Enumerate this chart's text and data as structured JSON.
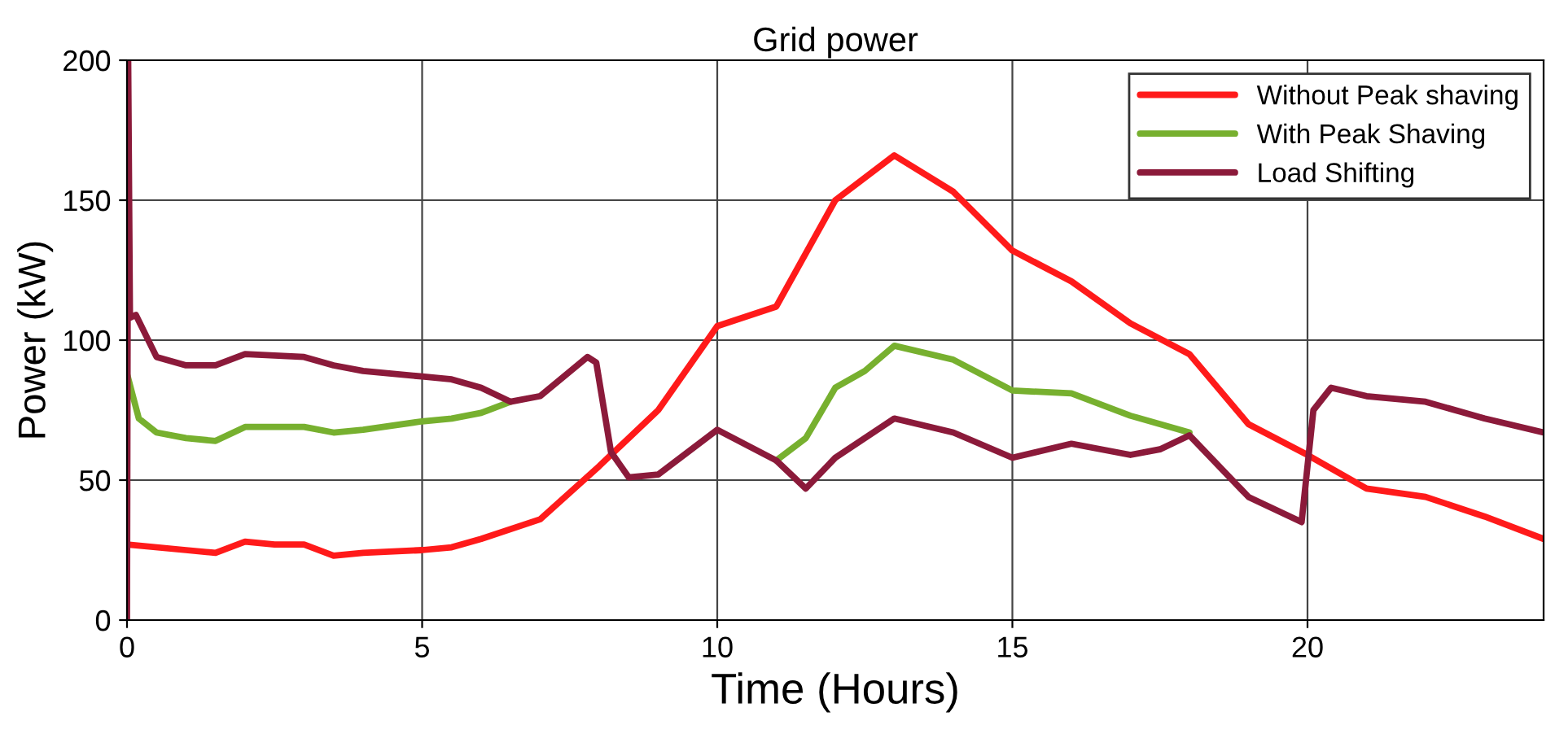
{
  "chart_data": {
    "type": "line",
    "title": "Grid power",
    "xlabel": "Time (Hours)",
    "ylabel": "Power (kW)",
    "xlim": [
      0,
      24
    ],
    "ylim": [
      0,
      200
    ],
    "xticks": [
      0,
      5,
      10,
      15,
      20
    ],
    "yticks": [
      0,
      50,
      100,
      150,
      200
    ],
    "grid": true,
    "legend": "top right",
    "line_style": "solid",
    "series": [
      {
        "name": "Without Peak shaving",
        "color": "#ff1a1a",
        "x": [
          0,
          1,
          1.5,
          2,
          2.5,
          3,
          3.5,
          4,
          5,
          5.5,
          6,
          7,
          8,
          9,
          10,
          11,
          12,
          13,
          14,
          15,
          16,
          17,
          18,
          19,
          20,
          21,
          22,
          23,
          24
        ],
        "values": [
          27,
          25,
          24,
          28,
          27,
          27,
          23,
          24,
          25,
          26,
          29,
          36,
          55,
          75,
          105,
          112,
          150,
          166,
          153,
          132,
          121,
          106,
          95,
          70,
          59,
          47,
          44,
          37,
          29
        ]
      },
      {
        "name": "With Peak Shaving",
        "color": "#77b02f",
        "x": [
          0,
          0.2,
          0.5,
          1,
          1.5,
          2,
          3,
          3.5,
          4,
          5,
          5.5,
          6,
          6.5,
          8.5,
          11,
          11.5,
          12,
          12.5,
          13,
          14,
          15,
          16,
          17,
          18
        ],
        "values": [
          88,
          72,
          67,
          65,
          64,
          69,
          69,
          67,
          68,
          71,
          72,
          74,
          78,
          null,
          57,
          65,
          83,
          89,
          98,
          93,
          82,
          81,
          73,
          67
        ]
      },
      {
        "name": "Load Shifting",
        "color": "#8b1a3a",
        "x": [
          0,
          0.02,
          0.05,
          0.15,
          0.5,
          1,
          1.5,
          2,
          3,
          3.5,
          4,
          5,
          5.5,
          6,
          6.5,
          7,
          7.8,
          7.95,
          8.2,
          8.5,
          9,
          10,
          11,
          11.5,
          12,
          13,
          14,
          15,
          16,
          17,
          17.5,
          18,
          19,
          19.9,
          20.1,
          20.4,
          21,
          22,
          23,
          24
        ],
        "values": [
          0,
          200,
          108,
          109,
          94,
          91,
          91,
          95,
          94,
          91,
          89,
          87,
          86,
          83,
          78,
          80,
          94,
          92,
          60,
          51,
          52,
          68,
          57,
          47,
          58,
          72,
          67,
          58,
          63,
          59,
          61,
          66,
          44,
          35,
          75,
          83,
          80,
          78,
          72,
          67
        ]
      }
    ]
  }
}
